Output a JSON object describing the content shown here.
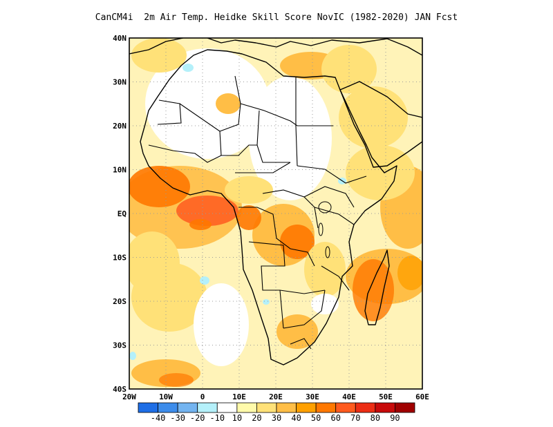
{
  "title": "CanCM4i  2m Air Temp. Heidke Skill Score NovIC (1982-2020) JAN Fcst",
  "map": {
    "lon_range": [
      -20,
      60
    ],
    "lat_range": [
      -40,
      40
    ],
    "grid_lines": "dotted gray every 10 degrees",
    "region": "Africa",
    "lat_labels": [
      "40N",
      "30N",
      "20N",
      "10N",
      "EQ",
      "10S",
      "20S",
      "30S",
      "40S"
    ],
    "lon_labels": [
      "20W",
      "10W",
      "0",
      "10E",
      "20E",
      "30E",
      "40E",
      "50E",
      "60E"
    ]
  },
  "colorbar": {
    "colors": [
      "#1e6ee6",
      "#3c8ceb",
      "#73b4f0",
      "#b4f0fa",
      "#ffffff",
      "#fffaaa",
      "#ffe178",
      "#ffbe46",
      "#ffa000",
      "#ff7800",
      "#ff5a1e",
      "#ec2d14",
      "#c80a0a",
      "#a00000"
    ],
    "labels": [
      "-40",
      "-30",
      "-20",
      "-10",
      "10",
      "20",
      "30",
      "40",
      "50",
      "60",
      "70",
      "80",
      "90"
    ]
  }
}
